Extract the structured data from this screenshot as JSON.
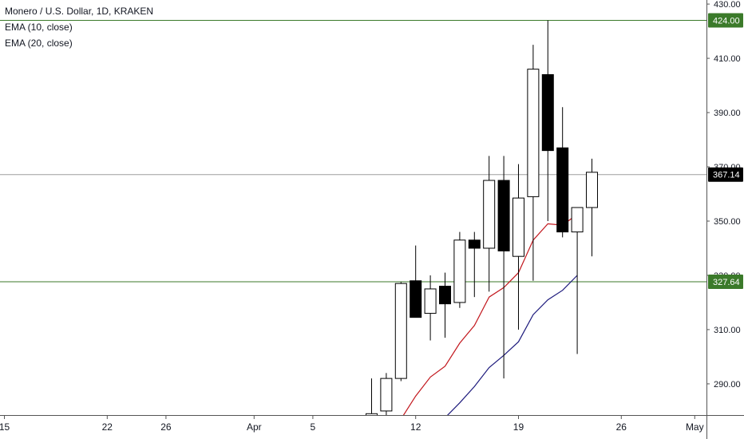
{
  "legend": {
    "symbol": "Monero / U.S. Dollar, 1D, KRAKEN",
    "ema10": "EMA (10, close)",
    "ema20": "EMA (20, close)"
  },
  "colors": {
    "background": "#ffffff",
    "candle_border": "#000000",
    "bull_fill": "#ffffff",
    "bear_fill": "#000000",
    "ema10": "#c2171d",
    "ema20": "#1d1a7c",
    "hline": "#3b7a2a",
    "last_line": "#9e9e9e",
    "axis_text": "#131722",
    "axis_line": "#555555"
  },
  "chart_data": {
    "type": "candlestick",
    "title": "Monero / U.S. Dollar, 1D, KRAKEN",
    "xlabel": "",
    "ylabel": "",
    "y_ticks": [
      "290.00",
      "310.00",
      "330.00",
      "350.00",
      "370.00",
      "390.00",
      "410.00",
      "430.00"
    ],
    "y_range": [
      278.5,
      431.5
    ],
    "x_ticks": [
      {
        "label": "15",
        "day": 15
      },
      {
        "label": "22",
        "day": 22
      },
      {
        "label": "26",
        "day": 26
      },
      {
        "label": "Apr",
        "day": 32
      },
      {
        "label": "5",
        "day": 36
      },
      {
        "label": "12",
        "day": 43
      },
      {
        "label": "19",
        "day": 50
      },
      {
        "label": "26",
        "day": 57
      },
      {
        "label": "May",
        "day": 62
      }
    ],
    "x_range": [
      14.7,
      62.8
    ],
    "candles": [
      {
        "day": 37,
        "open": 278.0,
        "high": 278.5,
        "low": 278.0,
        "close": 278.2
      },
      {
        "day": 40,
        "open": 278.0,
        "high": 292.0,
        "low": 278.0,
        "close": 279.0
      },
      {
        "day": 41,
        "open": 280.0,
        "high": 294.0,
        "low": 278.0,
        "close": 292.0
      },
      {
        "day": 42,
        "open": 292.0,
        "high": 327.5,
        "low": 291.0,
        "close": 327.0
      },
      {
        "day": 43,
        "open": 328.0,
        "high": 341.0,
        "low": 316.0,
        "close": 314.5
      },
      {
        "day": 44,
        "open": 316.0,
        "high": 330.0,
        "low": 306.0,
        "close": 325.0
      },
      {
        "day": 45,
        "open": 326.0,
        "high": 331.0,
        "low": 307.0,
        "close": 319.5
      },
      {
        "day": 46,
        "open": 320.0,
        "high": 346.0,
        "low": 318.0,
        "close": 343.0
      },
      {
        "day": 47,
        "open": 343.0,
        "high": 346.0,
        "low": 322.0,
        "close": 340.0
      },
      {
        "day": 48,
        "open": 340.0,
        "high": 374.0,
        "low": 324.0,
        "close": 365.0
      },
      {
        "day": 49,
        "open": 365.0,
        "high": 374.0,
        "low": 292.0,
        "close": 339.0
      },
      {
        "day": 50,
        "open": 337.0,
        "high": 371.0,
        "low": 310.0,
        "close": 358.5
      },
      {
        "day": 51,
        "open": 359.0,
        "high": 415.0,
        "low": 328.0,
        "close": 406.0
      },
      {
        "day": 52,
        "open": 404.0,
        "high": 424.0,
        "low": 350.0,
        "close": 376.0
      },
      {
        "day": 53,
        "open": 377.0,
        "high": 392.0,
        "low": 344.0,
        "close": 346.0
      },
      {
        "day": 54,
        "open": 346.0,
        "high": 355.0,
        "low": 301.0,
        "close": 355.0
      },
      {
        "day": 55,
        "open": 355.0,
        "high": 373.0,
        "low": 337.0,
        "close": 368.0
      }
    ],
    "series": [
      {
        "name": "EMA (10, close)",
        "color": "#c2171d",
        "x": [
          42,
          43,
          44,
          45,
          46,
          47,
          48,
          49,
          50,
          51,
          52,
          53,
          54
        ],
        "values": [
          277.0,
          285.5,
          292.5,
          296.5,
          305.0,
          311.5,
          322.0,
          325.5,
          331.0,
          343.0,
          349.0,
          348.5,
          352.5
        ]
      },
      {
        "name": "EMA (20, close)",
        "color": "#1d1a7c",
        "x": [
          45,
          46,
          47,
          48,
          49,
          50,
          51,
          52,
          53,
          54
        ],
        "values": [
          277.5,
          283.0,
          289.0,
          296.0,
          300.5,
          305.5,
          315.5,
          321.0,
          324.5,
          330.0
        ]
      }
    ],
    "horizontal_lines": [
      {
        "value": 424.0,
        "label": "424.00",
        "color": "#3b7a2a"
      },
      {
        "value": 327.64,
        "label": "327.64",
        "color": "#3b7a2a"
      }
    ],
    "last_price": {
      "value": 367.14,
      "label": "367.14",
      "color": "#000000"
    },
    "grid": false,
    "legend_position": "top-left"
  }
}
